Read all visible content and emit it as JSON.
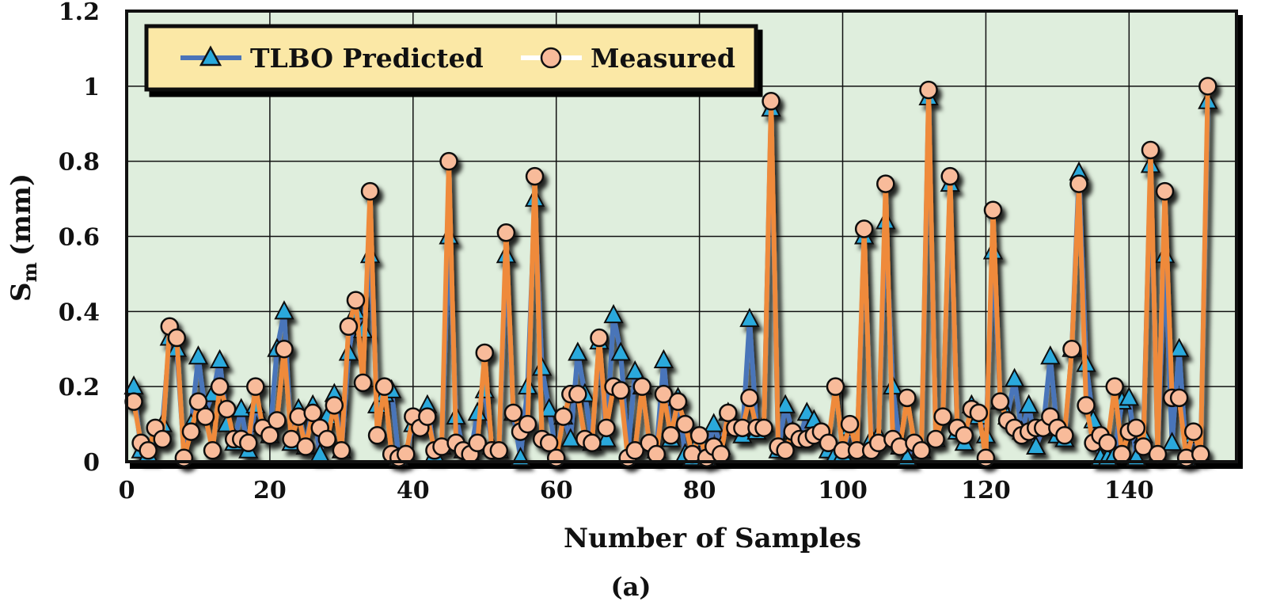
{
  "chart_data": {
    "type": "line",
    "title": "",
    "xlabel": "Number of Samples",
    "ylabel": "S",
    "ylabel_subscript": "m",
    "ylabel_unit": "(mm)",
    "caption": "(a)",
    "xlim": [
      0,
      155
    ],
    "ylim": [
      0,
      1.2
    ],
    "xticks": [
      0,
      20,
      40,
      60,
      80,
      100,
      120,
      140
    ],
    "yticks": [
      0,
      0.2,
      0.4,
      0.6,
      0.8,
      1,
      1.2
    ],
    "ytick_labels": [
      "0",
      "0.2",
      "0.4",
      "0.6",
      "0.8",
      "1",
      "1.2"
    ],
    "grid": true,
    "legend_position": "top-left",
    "series": [
      {
        "name": "TLBO Predicted",
        "color": "#4a74b9",
        "marker_color": "#29a9dc",
        "marker": "triangle",
        "x": [
          1,
          2,
          3,
          4,
          5,
          6,
          7,
          8,
          9,
          10,
          11,
          12,
          13,
          14,
          15,
          16,
          17,
          18,
          19,
          20,
          21,
          22,
          23,
          24,
          25,
          26,
          27,
          28,
          29,
          30,
          31,
          32,
          33,
          34,
          35,
          36,
          37,
          38,
          39,
          40,
          41,
          42,
          43,
          44,
          45,
          46,
          47,
          48,
          49,
          50,
          51,
          52,
          53,
          54,
          55,
          56,
          57,
          58,
          59,
          60,
          61,
          62,
          63,
          64,
          65,
          66,
          67,
          68,
          69,
          70,
          71,
          72,
          73,
          74,
          75,
          76,
          77,
          78,
          79,
          80,
          81,
          82,
          83,
          84,
          85,
          86,
          87,
          88,
          89,
          90,
          91,
          92,
          93,
          94,
          95,
          96,
          97,
          98,
          99,
          100,
          101,
          102,
          103,
          104,
          105,
          106,
          107,
          108,
          109,
          110,
          111,
          112,
          113,
          114,
          115,
          116,
          117,
          118,
          119,
          120,
          121,
          122,
          123,
          124,
          125,
          126,
          127,
          128,
          129,
          130,
          131,
          132,
          133,
          134,
          135,
          136,
          137,
          138,
          139,
          140,
          141,
          142,
          143,
          144,
          145,
          146,
          147,
          148,
          149,
          150,
          151
        ],
        "values": [
          0.2,
          0.03,
          0.02,
          0.06,
          0.1,
          0.33,
          0.3,
          0.02,
          0.1,
          0.28,
          0.13,
          0.18,
          0.27,
          0.1,
          0.05,
          0.14,
          0.03,
          0.15,
          0.1,
          0.07,
          0.3,
          0.4,
          0.05,
          0.14,
          0.04,
          0.15,
          0.02,
          0.12,
          0.18,
          0.03,
          0.29,
          0.4,
          0.35,
          0.55,
          0.15,
          0.18,
          0.19,
          0.01,
          0.02,
          0.1,
          0.1,
          0.15,
          0.02,
          0.04,
          0.6,
          0.12,
          0.03,
          0.02,
          0.13,
          0.19,
          0.04,
          0.03,
          0.55,
          0.13,
          0.01,
          0.2,
          0.7,
          0.25,
          0.14,
          0.02,
          0.12,
          0.06,
          0.29,
          0.18,
          0.05,
          0.32,
          0.06,
          0.39,
          0.29,
          0.02,
          0.24,
          0.2,
          0.05,
          0.03,
          0.27,
          0.06,
          0.17,
          0.02,
          0.01,
          0.06,
          0.01,
          0.1,
          0.04,
          0.13,
          0.09,
          0.07,
          0.38,
          0.08,
          0.1,
          0.94,
          0.03,
          0.15,
          0.08,
          0.06,
          0.13,
          0.11,
          0.07,
          0.03,
          0.02,
          0.02,
          0.09,
          0.03,
          0.6,
          0.06,
          0.07,
          0.64,
          0.2,
          0.04,
          0.01,
          0.05,
          0.03,
          0.97,
          0.06,
          0.12,
          0.74,
          0.08,
          0.05,
          0.15,
          0.12,
          0.07,
          0.56,
          0.16,
          0.12,
          0.22,
          0.08,
          0.15,
          0.04,
          0.09,
          0.28,
          0.07,
          0.06,
          0.3,
          0.77,
          0.26,
          0.11,
          0.01,
          0.01,
          0.02,
          0.16,
          0.17,
          0.01,
          0.07,
          0.79,
          0.02,
          0.55,
          0.05,
          0.3,
          0.01,
          0.07,
          0.02,
          0.96
        ]
      },
      {
        "name": "Measured",
        "color": "#ef8a3a",
        "marker_color": "#f8bb9a",
        "marker": "circle",
        "x": [
          1,
          2,
          3,
          4,
          5,
          6,
          7,
          8,
          9,
          10,
          11,
          12,
          13,
          14,
          15,
          16,
          17,
          18,
          19,
          20,
          21,
          22,
          23,
          24,
          25,
          26,
          27,
          28,
          29,
          30,
          31,
          32,
          33,
          34,
          35,
          36,
          37,
          38,
          39,
          40,
          41,
          42,
          43,
          44,
          45,
          46,
          47,
          48,
          49,
          50,
          51,
          52,
          53,
          54,
          55,
          56,
          57,
          58,
          59,
          60,
          61,
          62,
          63,
          64,
          65,
          66,
          67,
          68,
          69,
          70,
          71,
          72,
          73,
          74,
          75,
          76,
          77,
          78,
          79,
          80,
          81,
          82,
          83,
          84,
          85,
          86,
          87,
          88,
          89,
          90,
          91,
          92,
          93,
          94,
          95,
          96,
          97,
          98,
          99,
          100,
          101,
          102,
          103,
          104,
          105,
          106,
          107,
          108,
          109,
          110,
          111,
          112,
          113,
          114,
          115,
          116,
          117,
          118,
          119,
          120,
          121,
          122,
          123,
          124,
          125,
          126,
          127,
          128,
          129,
          130,
          131,
          132,
          133,
          134,
          135,
          136,
          137,
          138,
          139,
          140,
          141,
          142,
          143,
          144,
          145,
          146,
          147,
          148,
          149,
          150,
          151
        ],
        "values": [
          0.16,
          0.05,
          0.03,
          0.09,
          0.06,
          0.36,
          0.33,
          0.01,
          0.08,
          0.16,
          0.12,
          0.03,
          0.2,
          0.14,
          0.06,
          0.06,
          0.05,
          0.2,
          0.09,
          0.07,
          0.11,
          0.3,
          0.06,
          0.12,
          0.04,
          0.13,
          0.09,
          0.06,
          0.15,
          0.03,
          0.36,
          0.43,
          0.21,
          0.72,
          0.07,
          0.2,
          0.02,
          0.01,
          0.02,
          0.12,
          0.09,
          0.12,
          0.03,
          0.04,
          0.8,
          0.05,
          0.03,
          0.02,
          0.05,
          0.29,
          0.03,
          0.03,
          0.61,
          0.13,
          0.08,
          0.1,
          0.76,
          0.06,
          0.05,
          0.01,
          0.12,
          0.18,
          0.18,
          0.06,
          0.05,
          0.33,
          0.09,
          0.2,
          0.19,
          0.01,
          0.03,
          0.2,
          0.05,
          0.02,
          0.18,
          0.07,
          0.16,
          0.1,
          0.02,
          0.07,
          0.01,
          0.04,
          0.02,
          0.13,
          0.09,
          0.09,
          0.17,
          0.09,
          0.09,
          0.96,
          0.04,
          0.03,
          0.08,
          0.06,
          0.06,
          0.07,
          0.08,
          0.05,
          0.2,
          0.03,
          0.1,
          0.03,
          0.62,
          0.03,
          0.05,
          0.74,
          0.06,
          0.04,
          0.17,
          0.05,
          0.03,
          0.99,
          0.06,
          0.12,
          0.76,
          0.09,
          0.07,
          0.14,
          0.13,
          0.01,
          0.67,
          0.16,
          0.11,
          0.09,
          0.07,
          0.08,
          0.09,
          0.09,
          0.12,
          0.09,
          0.07,
          0.3,
          0.74,
          0.15,
          0.05,
          0.07,
          0.05,
          0.2,
          0.02,
          0.08,
          0.09,
          0.04,
          0.83,
          0.02,
          0.72,
          0.17,
          0.17,
          0.01,
          0.08,
          0.02,
          1.0
        ]
      }
    ]
  },
  "colors": {
    "plot_background": "#dfeedd",
    "legend_background": "#fbe8a6",
    "grid": "#111111"
  }
}
